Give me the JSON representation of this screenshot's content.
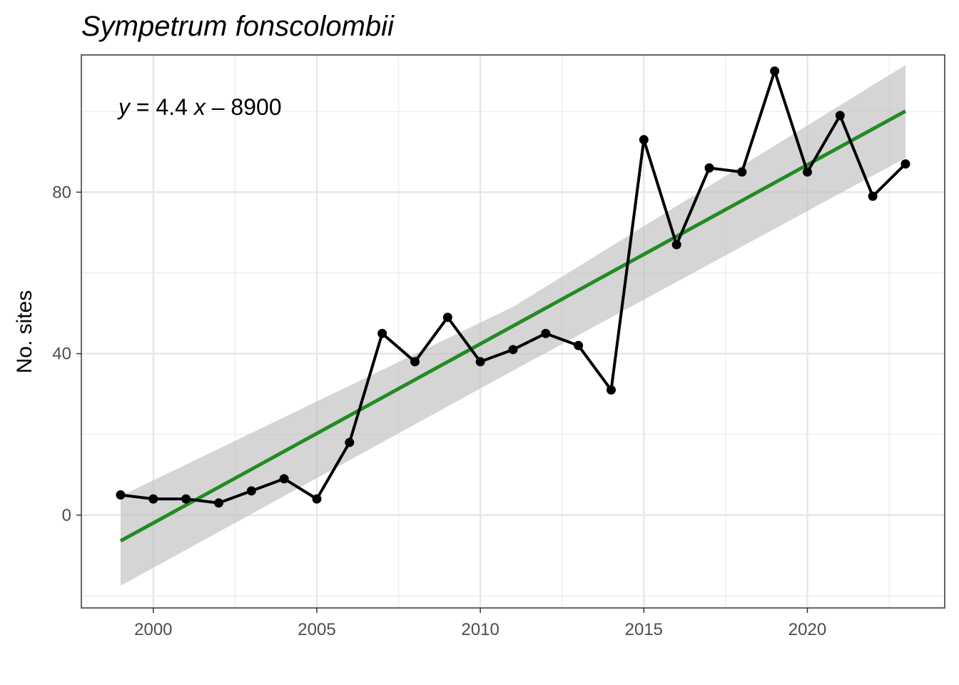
{
  "chart_data": {
    "type": "line",
    "title": "Sympetrum fonscolombii",
    "xlabel": "",
    "ylabel": "No. sites",
    "xlim": [
      1997.8,
      2024.2
    ],
    "ylim": [
      -23,
      114
    ],
    "x_ticks": [
      2000,
      2005,
      2010,
      2015,
      2020
    ],
    "y_ticks": [
      0,
      40,
      80
    ],
    "grid": true,
    "series": [
      {
        "x": [
          1999,
          2000,
          2001,
          2002,
          2003,
          2004,
          2005,
          2006,
          2007,
          2008,
          2009,
          2010,
          2011,
          2012,
          2013,
          2014,
          2015,
          2016,
          2017,
          2018,
          2019,
          2020,
          2021,
          2022,
          2023
        ],
        "values": [
          5,
          4,
          4,
          3,
          6,
          9,
          4,
          18,
          45,
          38,
          49,
          38,
          41,
          45,
          42,
          31,
          93,
          67,
          86,
          85,
          110,
          85,
          99,
          79,
          87
        ],
        "color": "#000000"
      }
    ],
    "trend": {
      "slope": 4.4,
      "intercept": -8900,
      "x_range": [
        1999,
        2023
      ],
      "y_at_start": -6.4,
      "y_at_end": 100.1,
      "ci_at_start": [
        -17.5,
        4.7
      ],
      "ci_at_mid": [
        35.8,
        51.6
      ],
      "ci_at_end": [
        88.5,
        111.5
      ],
      "color": "#228B22",
      "band_color": "#bebebe"
    },
    "annotations": [
      {
        "parts": [
          "y",
          " = 4.4 ",
          "x",
          " – 8900"
        ]
      }
    ]
  }
}
